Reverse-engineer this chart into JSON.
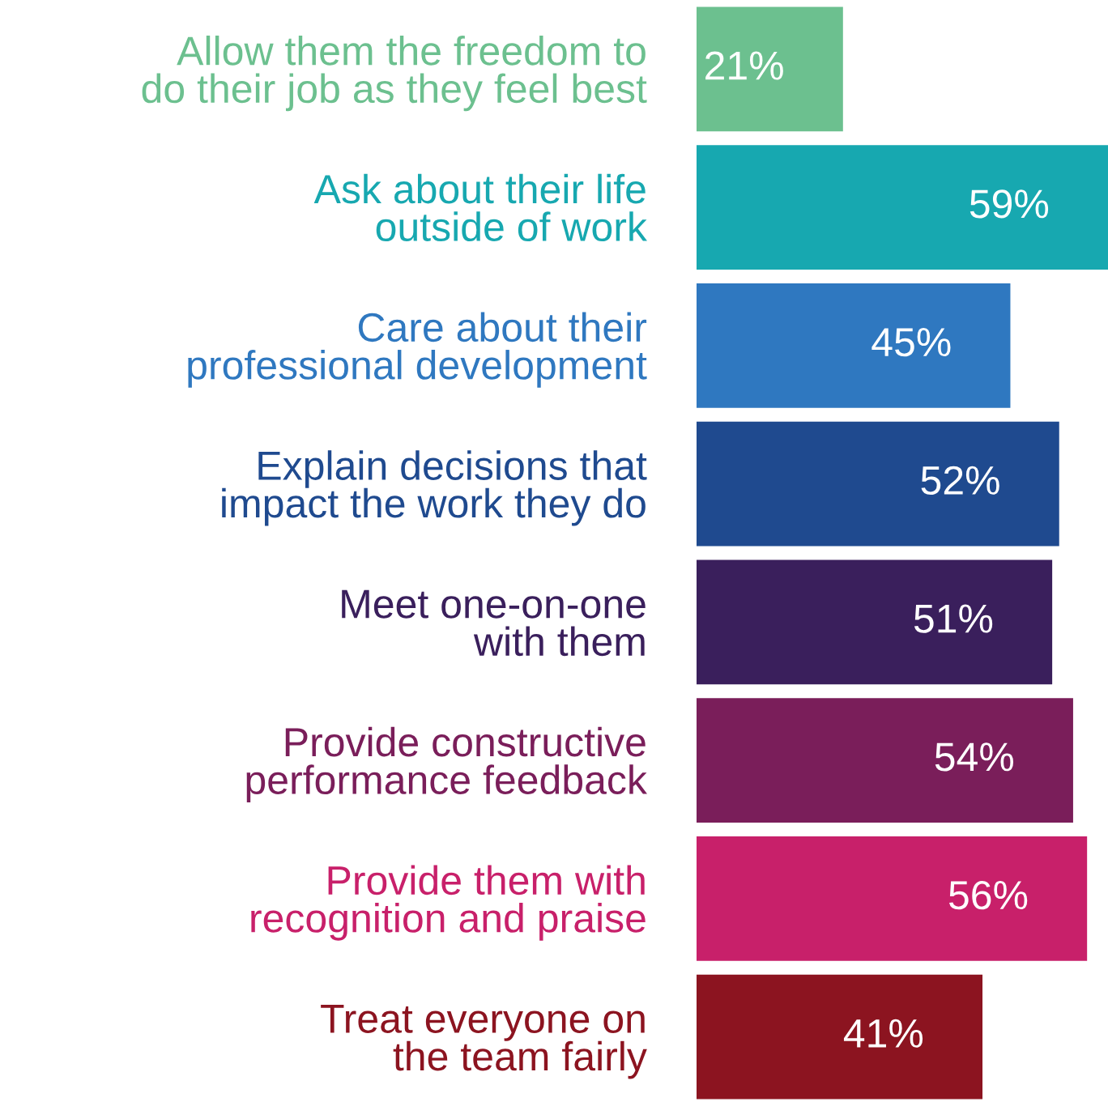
{
  "chart_data": {
    "type": "bar",
    "orientation": "horizontal",
    "categories": [
      "Allow them the freedom to\ndo their job as they feel best",
      "Ask about their life\noutside of work",
      "Care about their\nprofessional development",
      "Explain decisions that\nimpact the work they do",
      "Meet one-on-one\nwith them",
      "Provide constructive\nperformance feedback",
      "Provide them with\nrecognition and praise",
      "Treat everyone on\nthe team fairly"
    ],
    "values": [
      21,
      59,
      45,
      52,
      51,
      54,
      56,
      41
    ],
    "value_labels": [
      "21%",
      "59%",
      "45%",
      "52%",
      "51%",
      "54%",
      "56%",
      "41%"
    ],
    "colors": [
      "#6cc08f",
      "#17a8b0",
      "#2f78c0",
      "#1f4a8f",
      "#3a1f5c",
      "#7a1e5a",
      "#c8206a",
      "#8c1420"
    ],
    "grid": false,
    "legend": false
  }
}
